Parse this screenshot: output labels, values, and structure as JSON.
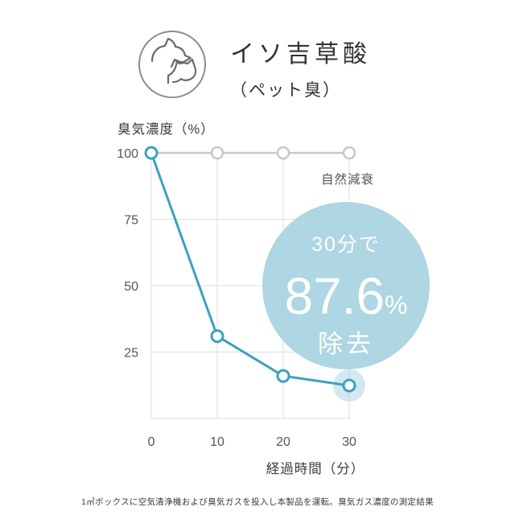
{
  "header": {
    "title": "イソ吉草酸",
    "subtitle": "（ペット臭）",
    "icon": "dog-cat-icon"
  },
  "chart_data": {
    "type": "line",
    "x": [
      0,
      10,
      20,
      30
    ],
    "xlabel": "経過時間（分）",
    "ylabel": "臭気濃度（%）",
    "ylim": [
      0,
      100
    ],
    "yticks": [
      25,
      50,
      75,
      100
    ],
    "grid": true,
    "series": [
      {
        "label": "自然減衰",
        "color": "#c8c8c8",
        "values": [
          100,
          100,
          100,
          100
        ]
      },
      {
        "label": "",
        "color": "#3aa3bd",
        "values": [
          100,
          31,
          16,
          12.4
        ]
      }
    ],
    "annotation": {
      "line1": "30分で",
      "value": "87.6",
      "unit": "%",
      "line2": "除去",
      "color": "#aed6e3"
    }
  },
  "caption": "1㎥ボックスに空気清浄機および臭気ガスを投入し本製品を運転。臭気ガス濃度の測定結果"
}
